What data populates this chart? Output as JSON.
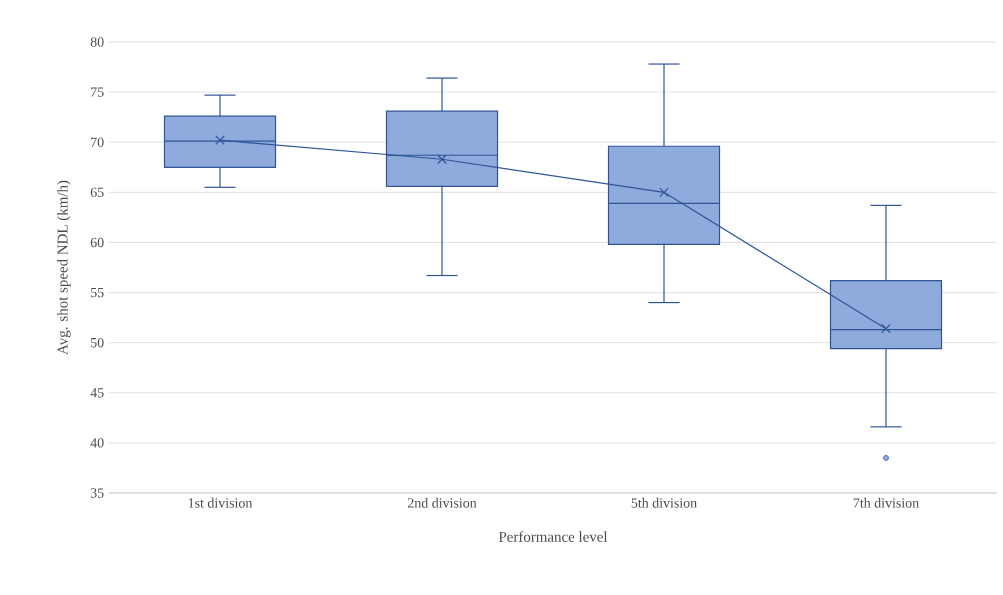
{
  "chart_data": {
    "type": "box",
    "xlabel": "Performance level",
    "ylabel": "Avg. shot speed NDL (km/h)",
    "categories": [
      "1st division",
      "2nd division",
      "5th division",
      "7th division"
    ],
    "color": "#8faadc",
    "boxes": [
      {
        "low": 65.5,
        "q1": 67.5,
        "median": 70.1,
        "q3": 72.6,
        "high": 74.7
      },
      {
        "low": 56.7,
        "q1": 65.6,
        "median": 68.7,
        "q3": 73.1,
        "high": 76.4
      },
      {
        "low": 54.0,
        "q1": 59.8,
        "median": 63.9,
        "q3": 69.6,
        "high": 77.8
      },
      {
        "low": 41.6,
        "q1": 49.4,
        "median": 51.3,
        "q3": 56.2,
        "high": 63.7,
        "outliers": [
          38.5
        ]
      }
    ],
    "series": [
      {
        "type": "line",
        "color": "#2f5597",
        "values": [
          70.2,
          68.3,
          65.0,
          51.4
        ]
      }
    ],
    "marker": "cross",
    "ylim": [
      35,
      80
    ],
    "yticks": [
      35,
      40,
      45,
      50,
      55,
      60,
      65,
      70,
      75,
      80
    ],
    "grid": "y"
  }
}
